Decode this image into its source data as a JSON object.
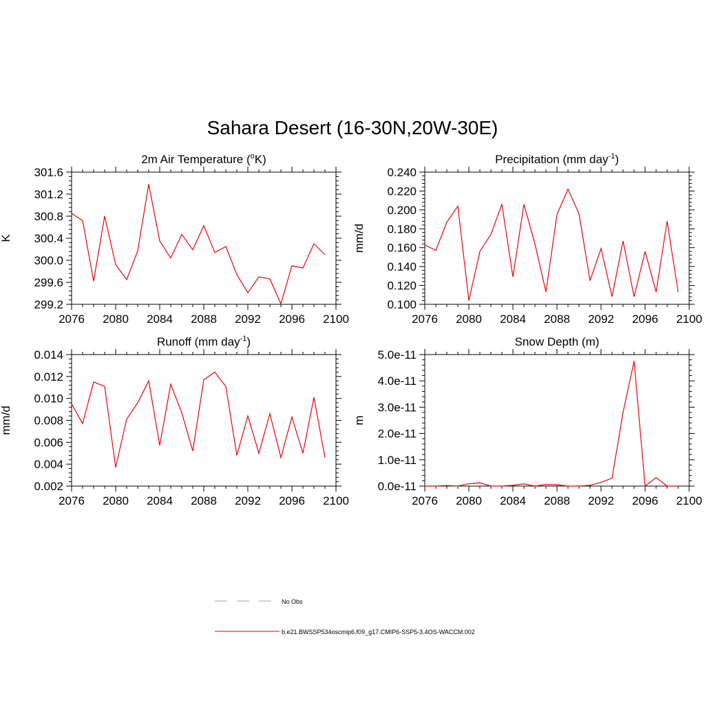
{
  "title": "Sahara Desert (16-30N,20W-30E)",
  "colors": {
    "model": "#e8000b",
    "obs": "#9a9ae0",
    "axis": "#000000"
  },
  "legend": {
    "obs_label": "No Obs",
    "model_label": "b.e21.BWSSP534oscmip6.f09_g17.CMIP6-SSP5-3.4OS-WACCM.002"
  },
  "chart_data": [
    {
      "id": "temp",
      "type": "line",
      "title": "2m Air Temperature (",
      "title_sup": "o",
      "title_after": "K)",
      "ylabel": "K",
      "xlim": [
        2076,
        2100
      ],
      "ylim": [
        299.2,
        301.6
      ],
      "xticks": [
        "2076",
        "2080",
        "2084",
        "2088",
        "2092",
        "2096",
        "2100"
      ],
      "yticks": [
        "299.2",
        "299.6",
        "300.0",
        "300.4",
        "300.8",
        "301.2",
        "301.6"
      ],
      "series": [
        {
          "x": [
            2076,
            2077,
            2078,
            2079,
            2080,
            2081,
            2082,
            2083,
            2084,
            2085,
            2086,
            2087,
            2088,
            2089,
            2090,
            2091,
            2092,
            2093,
            2094,
            2095,
            2096,
            2097,
            2098,
            2099
          ],
          "values": [
            300.85,
            300.72,
            299.62,
            300.8,
            299.92,
            299.65,
            300.17,
            301.38,
            300.35,
            300.04,
            300.47,
            300.19,
            300.63,
            300.14,
            300.25,
            299.74,
            299.41,
            299.7,
            299.66,
            299.21,
            299.9,
            299.86,
            300.3,
            300.1
          ]
        }
      ]
    },
    {
      "id": "precip",
      "type": "line",
      "title": "Precipitation (mm day",
      "title_sup": "-1",
      "title_after": ")",
      "ylabel": "mm/d",
      "xlim": [
        2076,
        2100
      ],
      "ylim": [
        0.1,
        0.24
      ],
      "xticks": [
        "2076",
        "2080",
        "2084",
        "2088",
        "2092",
        "2096",
        "2100"
      ],
      "yticks": [
        "0.100",
        "0.120",
        "0.140",
        "0.160",
        "0.180",
        "0.200",
        "0.220",
        "0.240"
      ],
      "series": [
        {
          "x": [
            2076,
            2077,
            2078,
            2079,
            2080,
            2081,
            2082,
            2083,
            2084,
            2085,
            2086,
            2087,
            2088,
            2089,
            2090,
            2091,
            2092,
            2093,
            2094,
            2095,
            2096,
            2097,
            2098,
            2099
          ],
          "values": [
            0.163,
            0.157,
            0.187,
            0.204,
            0.104,
            0.156,
            0.174,
            0.206,
            0.129,
            0.206,
            0.164,
            0.113,
            0.195,
            0.222,
            0.196,
            0.125,
            0.159,
            0.108,
            0.167,
            0.108,
            0.156,
            0.113,
            0.188,
            0.113
          ]
        }
      ]
    },
    {
      "id": "runoff",
      "type": "line",
      "title": "Runoff (mm day",
      "title_sup": "-1",
      "title_after": ")",
      "ylabel": "mm/d",
      "xlim": [
        2076,
        2100
      ],
      "ylim": [
        0.002,
        0.014
      ],
      "xticks": [
        "2076",
        "2080",
        "2084",
        "2088",
        "2092",
        "2096",
        "2100"
      ],
      "yticks": [
        "0.002",
        "0.004",
        "0.006",
        "0.008",
        "0.010",
        "0.012",
        "0.014"
      ],
      "series": [
        {
          "x": [
            2076,
            2077,
            2078,
            2079,
            2080,
            2081,
            2082,
            2083,
            2084,
            2085,
            2086,
            2087,
            2088,
            2089,
            2090,
            2091,
            2092,
            2093,
            2094,
            2095,
            2096,
            2097,
            2098,
            2099
          ],
          "values": [
            0.0095,
            0.0077,
            0.0115,
            0.0111,
            0.0037,
            0.0081,
            0.0096,
            0.0116,
            0.0057,
            0.0113,
            0.0087,
            0.0052,
            0.0117,
            0.0124,
            0.0111,
            0.0048,
            0.0084,
            0.005,
            0.0086,
            0.0046,
            0.0083,
            0.005,
            0.0101,
            0.0046
          ]
        }
      ]
    },
    {
      "id": "snow",
      "type": "line",
      "title": "Snow Depth (m)",
      "title_sup": "",
      "title_after": "",
      "ylabel": "m",
      "xlim": [
        2076,
        2100
      ],
      "ylim": [
        0,
        5e-11
      ],
      "xticks": [
        "2076",
        "2080",
        "2084",
        "2088",
        "2092",
        "2096",
        "2100"
      ],
      "yticks": [
        "0.0e-11",
        "1.0e-11",
        "2.0e-11",
        "3.0e-11",
        "4.0e-11",
        "5.0e-11"
      ],
      "series": [
        {
          "x": [
            2076,
            2077,
            2078,
            2079,
            2080,
            2081,
            2082,
            2083,
            2084,
            2085,
            2086,
            2087,
            2088,
            2089,
            2090,
            2091,
            2092,
            2093,
            2094,
            2095,
            2096,
            2097,
            2098,
            2099
          ],
          "values": [
            0,
            0,
            2e-13,
            0,
            9e-13,
            1.2e-12,
            0,
            0,
            3e-13,
            8e-13,
            0,
            6e-13,
            5e-13,
            0,
            0,
            3e-13,
            1.4e-12,
            3e-12,
            2.8e-11,
            4.75e-11,
            0,
            3.2e-12,
            0,
            0
          ]
        }
      ]
    }
  ]
}
